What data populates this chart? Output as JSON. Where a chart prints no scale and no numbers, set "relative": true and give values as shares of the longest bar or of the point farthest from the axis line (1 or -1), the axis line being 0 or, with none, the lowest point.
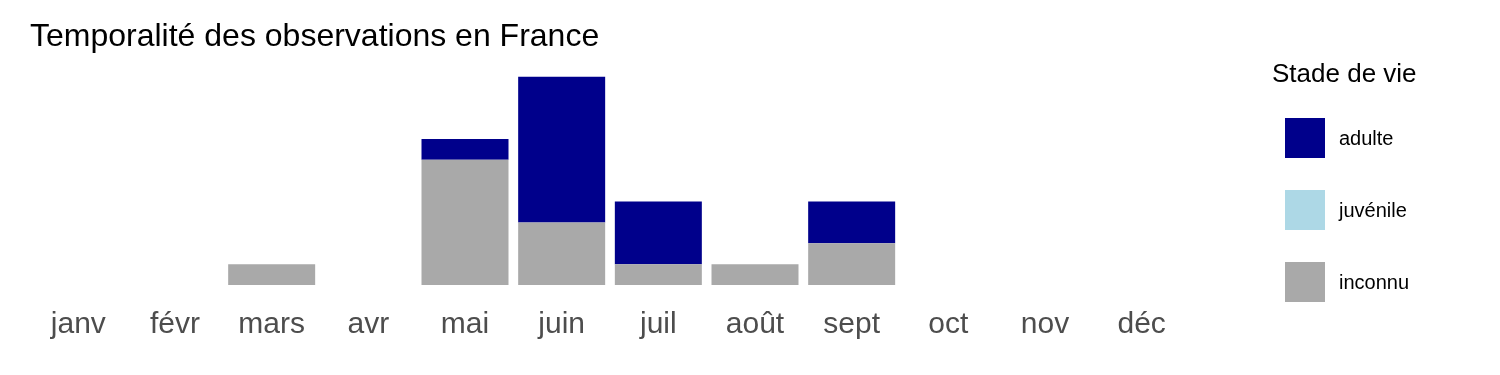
{
  "chart_data": {
    "type": "bar",
    "title": "Temporalité des observations en France",
    "legend_title": "Stade de vie",
    "categories": [
      "janv",
      "févr",
      "mars",
      "avr",
      "mai",
      "juin",
      "juil",
      "août",
      "sept",
      "oct",
      "nov",
      "déc"
    ],
    "stacked": true,
    "relative": true,
    "legend": "right",
    "grid": false,
    "series": [
      {
        "name": "inconnu",
        "color": "#a9a9a9",
        "values": [
          0,
          0,
          0.1,
          0,
          0.6,
          0.3,
          0.1,
          0.1,
          0.2,
          0,
          0,
          0
        ]
      },
      {
        "name": "juvénile",
        "color": "#add8e6",
        "values": [
          0,
          0,
          0,
          0,
          0,
          0,
          0,
          0,
          0,
          0,
          0,
          0
        ]
      },
      {
        "name": "adulte",
        "color": "#00008b",
        "values": [
          0,
          0,
          0,
          0,
          0.1,
          0.7,
          0.3,
          0,
          0.2,
          0,
          0,
          0
        ]
      }
    ]
  }
}
